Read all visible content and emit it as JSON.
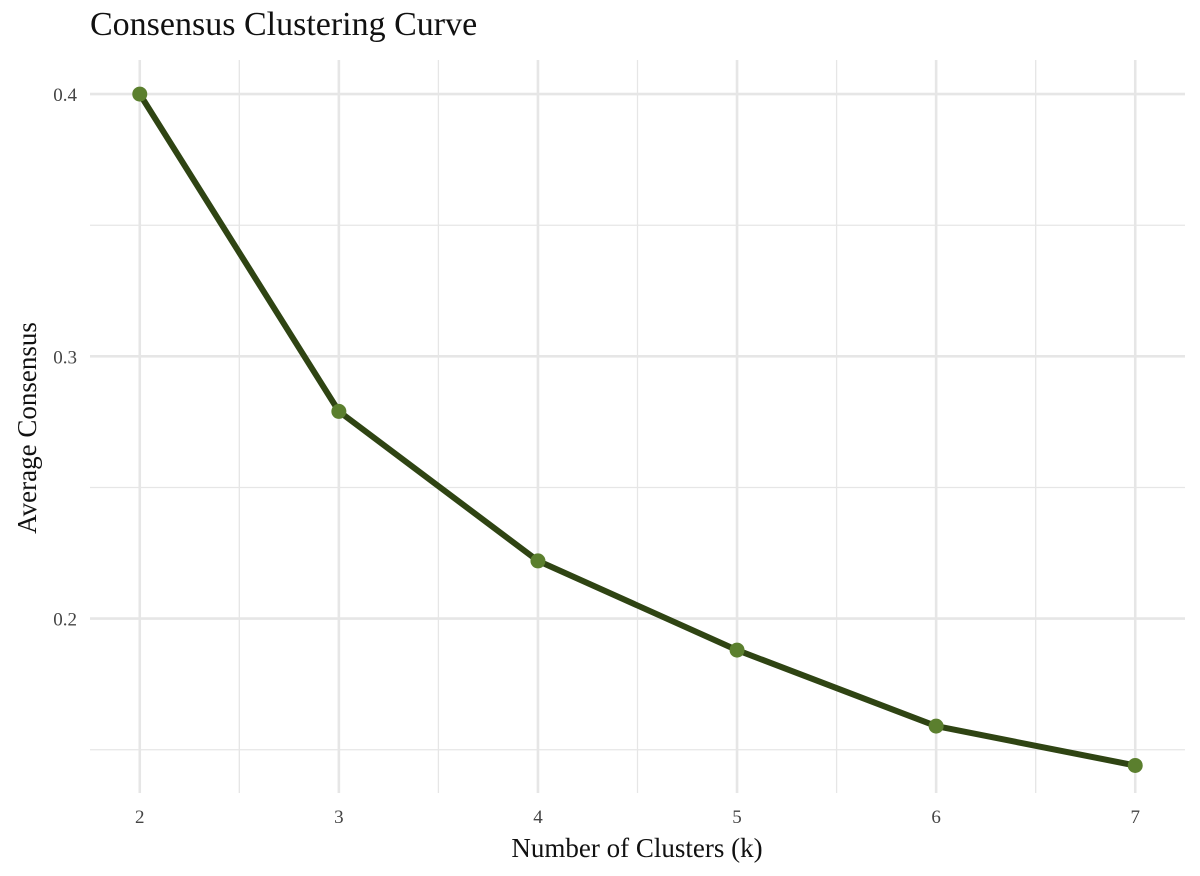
{
  "chart_data": {
    "type": "line",
    "title": "Consensus Clustering Curve",
    "xlabel": "Number of Clusters (k)",
    "ylabel": "Average Consensus",
    "x": [
      2,
      3,
      4,
      5,
      6,
      7
    ],
    "series": [
      {
        "values": [
          0.4,
          0.279,
          0.222,
          0.188,
          0.159,
          0.144
        ]
      }
    ],
    "xlim": [
      1.75,
      7.25
    ],
    "ylim": [
      0.1335,
      0.413
    ],
    "xticks": [
      "2",
      "3",
      "4",
      "5",
      "6",
      "7"
    ],
    "yticks": [
      "0.2",
      "0.3",
      "0.4"
    ],
    "ytick_values": [
      0.2,
      0.3,
      0.4
    ],
    "minor_yticks": [
      0.15,
      0.25,
      0.35
    ],
    "minor_xticks": [
      2.5,
      3.5,
      4.5,
      5.5,
      6.5
    ],
    "grid": true,
    "legend": "none",
    "colors": {
      "line": "#2f4413",
      "point": "#5b7f2e",
      "grid": "#e6e6e6"
    }
  }
}
